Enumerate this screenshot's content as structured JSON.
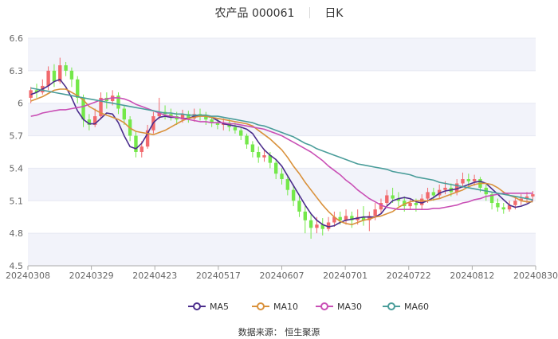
{
  "chart_data": {
    "type": "candlestick",
    "title": "农产品 000061",
    "period": "日K",
    "source": "数据来源： 恒生聚源",
    "ylim": [
      4.5,
      6.6
    ],
    "yticks": [
      4.5,
      4.8,
      5.1,
      5.4,
      5.7,
      6,
      6.3,
      6.6
    ],
    "xticks": [
      "20240308",
      "20240329",
      "20240423",
      "20240517",
      "20240607",
      "20240701",
      "20240722",
      "20240812",
      "20240830"
    ],
    "grid": "horizontal-bands",
    "legend_position": "bottom",
    "colors": {
      "up": "#f1696d",
      "down": "#74e84a",
      "MA5": "#4b2d8c",
      "MA10": "#d9913b",
      "MA30": "#c94fb5",
      "MA60": "#4a9d9a",
      "band": "#f2f3fa",
      "axis": "#aaaaaa"
    },
    "series": [
      {
        "name": "MA5",
        "values": [
          6.08,
          6.1,
          6.13,
          6.16,
          6.2,
          6.22,
          6.15,
          6.05,
          5.93,
          5.85,
          5.81,
          5.81,
          5.86,
          5.91,
          5.9,
          5.82,
          5.7,
          5.6,
          5.58,
          5.63,
          5.72,
          5.82,
          5.87,
          5.88,
          5.87,
          5.87,
          5.86,
          5.86,
          5.88,
          5.89,
          5.88,
          5.87,
          5.84,
          5.81,
          5.8,
          5.79,
          5.78,
          5.76,
          5.72,
          5.64,
          5.57,
          5.52,
          5.48,
          5.42,
          5.33,
          5.24,
          5.15,
          5.06,
          4.98,
          4.92,
          4.88,
          4.86,
          4.87,
          4.9,
          4.92,
          4.93,
          4.94,
          4.95,
          4.95,
          4.95,
          4.98,
          5.05,
          5.1,
          5.12,
          5.13,
          5.12,
          5.09,
          5.08,
          5.1,
          5.13,
          5.17,
          5.19,
          5.2,
          5.21,
          5.23,
          5.25,
          5.27,
          5.28,
          5.26,
          5.21,
          5.16,
          5.11,
          5.06,
          5.04,
          5.05,
          5.07,
          5.1
        ]
      },
      {
        "name": "MA10",
        "values": [
          6.02,
          6.04,
          6.06,
          6.09,
          6.12,
          6.13,
          6.13,
          6.1,
          6.07,
          6.03,
          5.97,
          5.94,
          5.91,
          5.89,
          5.87,
          5.85,
          5.82,
          5.77,
          5.74,
          5.73,
          5.72,
          5.71,
          5.73,
          5.75,
          5.78,
          5.81,
          5.84,
          5.86,
          5.87,
          5.88,
          5.88,
          5.87,
          5.86,
          5.85,
          5.84,
          5.83,
          5.82,
          5.81,
          5.79,
          5.75,
          5.71,
          5.67,
          5.62,
          5.57,
          5.5,
          5.42,
          5.35,
          5.27,
          5.2,
          5.13,
          5.06,
          5.0,
          4.95,
          4.91,
          4.89,
          4.88,
          4.9,
          4.92,
          4.93,
          4.95,
          4.96,
          4.98,
          5.0,
          5.04,
          5.07,
          5.09,
          5.1,
          5.1,
          5.1,
          5.11,
          5.12,
          5.14,
          5.16,
          5.18,
          5.2,
          5.23,
          5.25,
          5.26,
          5.26,
          5.25,
          5.22,
          5.18,
          5.15,
          5.13,
          5.1,
          5.09,
          5.09
        ]
      },
      {
        "name": "MA30",
        "values": [
          5.88,
          5.89,
          5.91,
          5.92,
          5.93,
          5.94,
          5.94,
          5.95,
          5.96,
          5.97,
          5.99,
          6.01,
          6.03,
          6.04,
          6.05,
          6.05,
          6.04,
          6.02,
          5.99,
          5.97,
          5.95,
          5.93,
          5.91,
          5.89,
          5.88,
          5.87,
          5.86,
          5.85,
          5.84,
          5.83,
          5.83,
          5.82,
          5.82,
          5.82,
          5.81,
          5.81,
          5.8,
          5.79,
          5.78,
          5.77,
          5.76,
          5.74,
          5.72,
          5.7,
          5.67,
          5.64,
          5.61,
          5.58,
          5.55,
          5.51,
          5.47,
          5.42,
          5.38,
          5.34,
          5.29,
          5.25,
          5.2,
          5.16,
          5.12,
          5.09,
          5.06,
          5.04,
          5.03,
          5.02,
          5.02,
          5.02,
          5.02,
          5.02,
          5.02,
          5.03,
          5.03,
          5.04,
          5.05,
          5.06,
          5.08,
          5.09,
          5.11,
          5.12,
          5.14,
          5.15,
          5.16,
          5.17,
          5.17,
          5.17,
          5.17,
          5.17,
          5.17
        ]
      },
      {
        "name": "MA60",
        "values": [
          6.14,
          6.13,
          6.12,
          6.11,
          6.1,
          6.09,
          6.08,
          6.07,
          6.06,
          6.05,
          6.04,
          6.03,
          6.02,
          6.01,
          6.0,
          5.99,
          5.98,
          5.97,
          5.96,
          5.95,
          5.94,
          5.93,
          5.92,
          5.91,
          5.91,
          5.9,
          5.9,
          5.89,
          5.89,
          5.89,
          5.89,
          5.88,
          5.88,
          5.87,
          5.86,
          5.85,
          5.84,
          5.83,
          5.82,
          5.8,
          5.79,
          5.77,
          5.75,
          5.73,
          5.71,
          5.69,
          5.66,
          5.63,
          5.61,
          5.58,
          5.56,
          5.54,
          5.52,
          5.5,
          5.48,
          5.46,
          5.44,
          5.43,
          5.42,
          5.41,
          5.4,
          5.39,
          5.37,
          5.36,
          5.35,
          5.34,
          5.32,
          5.31,
          5.3,
          5.29,
          5.27,
          5.26,
          5.25,
          5.24,
          5.23,
          5.22,
          5.21,
          5.2,
          5.19,
          5.18,
          5.17,
          5.16,
          5.15,
          5.14,
          5.13,
          5.12,
          5.11
        ]
      }
    ],
    "candles": [
      [
        6.05,
        6.12,
        6.0,
        6.15
      ],
      [
        6.12,
        6.1,
        6.05,
        6.18
      ],
      [
        6.1,
        6.16,
        6.08,
        6.22
      ],
      [
        6.16,
        6.3,
        6.12,
        6.34
      ],
      [
        6.3,
        6.2,
        6.15,
        6.36
      ],
      [
        6.2,
        6.35,
        6.18,
        6.42
      ],
      [
        6.35,
        6.3,
        6.25,
        6.38
      ],
      [
        6.3,
        6.22,
        6.15,
        6.33
      ],
      [
        6.22,
        6.05,
        6.0,
        6.25
      ],
      [
        6.05,
        5.85,
        5.78,
        6.08
      ],
      [
        5.85,
        5.8,
        5.75,
        5.9
      ],
      [
        5.8,
        5.88,
        5.78,
        5.95
      ],
      [
        5.88,
        6.05,
        5.85,
        6.1
      ],
      [
        6.05,
        6.02,
        5.95,
        6.1
      ],
      [
        6.02,
        6.07,
        5.98,
        6.12
      ],
      [
        6.07,
        5.95,
        5.9,
        6.1
      ],
      [
        5.95,
        5.85,
        5.8,
        5.98
      ],
      [
        5.85,
        5.7,
        5.65,
        5.88
      ],
      [
        5.7,
        5.55,
        5.5,
        5.74
      ],
      [
        5.55,
        5.6,
        5.5,
        5.65
      ],
      [
        5.6,
        5.75,
        5.58,
        5.8
      ],
      [
        5.75,
        5.88,
        5.72,
        5.92
      ],
      [
        5.88,
        5.92,
        5.85,
        6.05
      ],
      [
        5.92,
        5.9,
        5.85,
        5.98
      ],
      [
        5.9,
        5.88,
        5.84,
        5.95
      ],
      [
        5.88,
        5.85,
        5.8,
        5.92
      ],
      [
        5.85,
        5.9,
        5.82,
        5.94
      ],
      [
        5.9,
        5.86,
        5.82,
        5.93
      ],
      [
        5.86,
        5.9,
        5.83,
        5.95
      ],
      [
        5.9,
        5.88,
        5.84,
        5.95
      ],
      [
        5.88,
        5.85,
        5.8,
        5.92
      ],
      [
        5.85,
        5.82,
        5.78,
        5.88
      ],
      [
        5.82,
        5.8,
        5.76,
        5.86
      ],
      [
        5.8,
        5.82,
        5.75,
        5.86
      ],
      [
        5.82,
        5.78,
        5.74,
        5.85
      ],
      [
        5.78,
        5.75,
        5.72,
        5.82
      ],
      [
        5.75,
        5.7,
        5.66,
        5.78
      ],
      [
        5.7,
        5.62,
        5.58,
        5.72
      ],
      [
        5.62,
        5.55,
        5.5,
        5.65
      ],
      [
        5.55,
        5.5,
        5.45,
        5.6
      ],
      [
        5.5,
        5.52,
        5.46,
        5.58
      ],
      [
        5.52,
        5.45,
        5.4,
        5.55
      ],
      [
        5.45,
        5.35,
        5.3,
        5.48
      ],
      [
        5.35,
        5.3,
        5.25,
        5.4
      ],
      [
        5.3,
        5.2,
        5.15,
        5.34
      ],
      [
        5.2,
        5.1,
        5.05,
        5.25
      ],
      [
        5.1,
        5.0,
        4.95,
        5.15
      ],
      [
        5.0,
        4.92,
        4.8,
        5.05
      ],
      [
        4.92,
        4.85,
        4.75,
        4.98
      ],
      [
        4.85,
        4.88,
        4.8,
        4.95
      ],
      [
        4.88,
        4.84,
        4.78,
        4.94
      ],
      [
        4.84,
        4.9,
        4.82,
        4.95
      ],
      [
        4.9,
        4.95,
        4.86,
        5.0
      ],
      [
        4.95,
        4.92,
        4.88,
        5.0
      ],
      [
        4.92,
        4.96,
        4.88,
        5.02
      ],
      [
        4.96,
        4.92,
        4.85,
        5.0
      ],
      [
        4.92,
        4.95,
        4.88,
        5.02
      ],
      [
        4.95,
        4.92,
        4.87,
        5.05
      ],
      [
        4.92,
        4.96,
        4.82,
        5.0
      ],
      [
        4.96,
        5.02,
        4.92,
        5.08
      ],
      [
        5.02,
        5.08,
        4.98,
        5.12
      ],
      [
        5.08,
        5.15,
        5.04,
        5.2
      ],
      [
        5.15,
        5.12,
        5.08,
        5.22
      ],
      [
        5.12,
        5.1,
        5.05,
        5.18
      ],
      [
        5.1,
        5.05,
        5.0,
        5.14
      ],
      [
        5.05,
        5.08,
        5.02,
        5.12
      ],
      [
        5.08,
        5.06,
        5.0,
        5.12
      ],
      [
        5.06,
        5.12,
        5.02,
        5.16
      ],
      [
        5.12,
        5.18,
        5.08,
        5.22
      ],
      [
        5.18,
        5.15,
        5.1,
        5.22
      ],
      [
        5.15,
        5.2,
        5.12,
        5.25
      ],
      [
        5.2,
        5.22,
        5.16,
        5.28
      ],
      [
        5.22,
        5.18,
        5.14,
        5.26
      ],
      [
        5.18,
        5.26,
        5.15,
        5.3
      ],
      [
        5.26,
        5.3,
        5.22,
        5.36
      ],
      [
        5.3,
        5.28,
        5.22,
        5.35
      ],
      [
        5.28,
        5.3,
        5.24,
        5.34
      ],
      [
        5.3,
        5.22,
        5.18,
        5.32
      ],
      [
        5.22,
        5.16,
        5.1,
        5.25
      ],
      [
        5.16,
        5.08,
        5.02,
        5.18
      ],
      [
        5.08,
        5.04,
        5.0,
        5.12
      ],
      [
        5.04,
        5.02,
        4.98,
        5.08
      ],
      [
        5.02,
        5.06,
        5.0,
        5.1
      ],
      [
        5.06,
        5.1,
        5.02,
        5.14
      ],
      [
        5.1,
        5.12,
        5.06,
        5.16
      ],
      [
        5.12,
        5.14,
        5.08,
        5.18
      ],
      [
        5.14,
        5.16,
        5.1,
        5.19
      ]
    ]
  },
  "legend": [
    {
      "label": "MA5",
      "color": "#4b2d8c"
    },
    {
      "label": "MA10",
      "color": "#d9913b"
    },
    {
      "label": "MA30",
      "color": "#c94fb5"
    },
    {
      "label": "MA60",
      "color": "#4a9d9a"
    }
  ]
}
